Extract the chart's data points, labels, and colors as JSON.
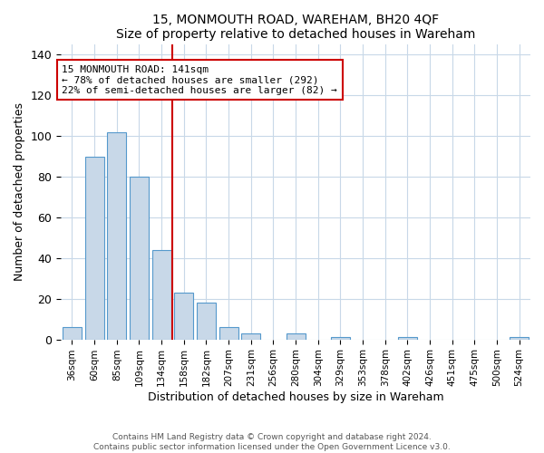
{
  "title": "15, MONMOUTH ROAD, WAREHAM, BH20 4QF",
  "subtitle": "Size of property relative to detached houses in Wareham",
  "xlabel": "Distribution of detached houses by size in Wareham",
  "ylabel": "Number of detached properties",
  "bin_labels": [
    "36sqm",
    "60sqm",
    "85sqm",
    "109sqm",
    "134sqm",
    "158sqm",
    "182sqm",
    "207sqm",
    "231sqm",
    "256sqm",
    "280sqm",
    "304sqm",
    "329sqm",
    "353sqm",
    "378sqm",
    "402sqm",
    "426sqm",
    "451sqm",
    "475sqm",
    "500sqm",
    "524sqm"
  ],
  "bar_heights": [
    6,
    90,
    102,
    80,
    44,
    23,
    18,
    6,
    3,
    0,
    3,
    0,
    1,
    0,
    0,
    1,
    0,
    0,
    0,
    0,
    1
  ],
  "bar_color": "#c8d8e8",
  "bar_edge_color": "#5599cc",
  "vline_color": "#cc0000",
  "annotation_text": "15 MONMOUTH ROAD: 141sqm\n← 78% of detached houses are smaller (292)\n22% of semi-detached houses are larger (82) →",
  "annotation_box_edge": "#cc0000",
  "ylim": [
    0,
    145
  ],
  "yticks": [
    0,
    20,
    40,
    60,
    80,
    100,
    120,
    140
  ],
  "footer_line1": "Contains HM Land Registry data © Crown copyright and database right 2024.",
  "footer_line2": "Contains public sector information licensed under the Open Government Licence v3.0."
}
